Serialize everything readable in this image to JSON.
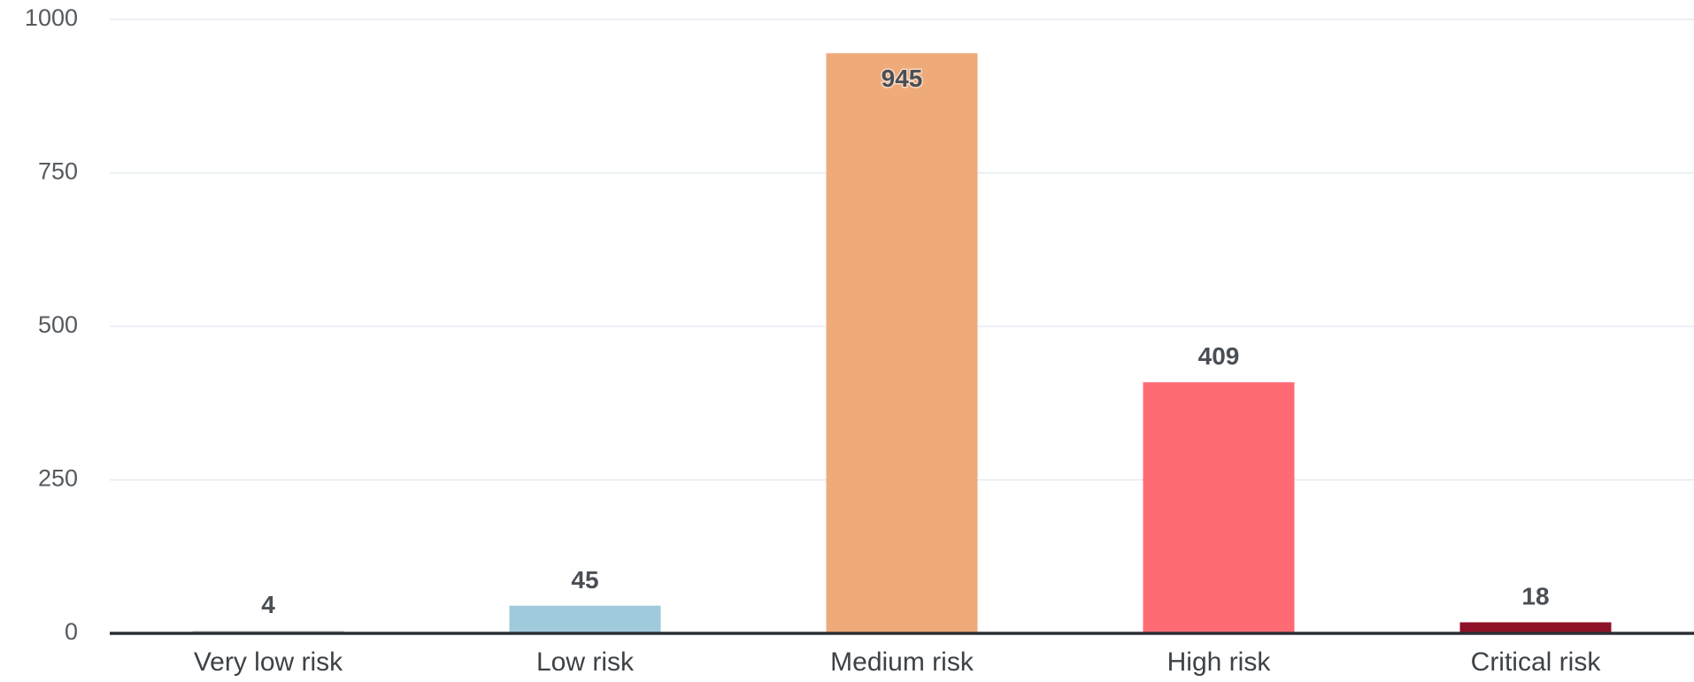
{
  "chart_data": {
    "type": "bar",
    "categories": [
      "Very low risk",
      "Low risk",
      "Medium risk",
      "High risk",
      "Critical risk"
    ],
    "values": [
      4,
      45,
      945,
      409,
      18
    ],
    "colors": [
      "#c9c9c9",
      "#9ecadb",
      "#efaa7a",
      "#ff6b75",
      "#8e1027"
    ],
    "ylim": [
      0,
      1000
    ],
    "yticks": [
      0,
      250,
      500,
      750,
      1000
    ],
    "grid": true,
    "title": "",
    "xlabel": "",
    "ylabel": ""
  }
}
